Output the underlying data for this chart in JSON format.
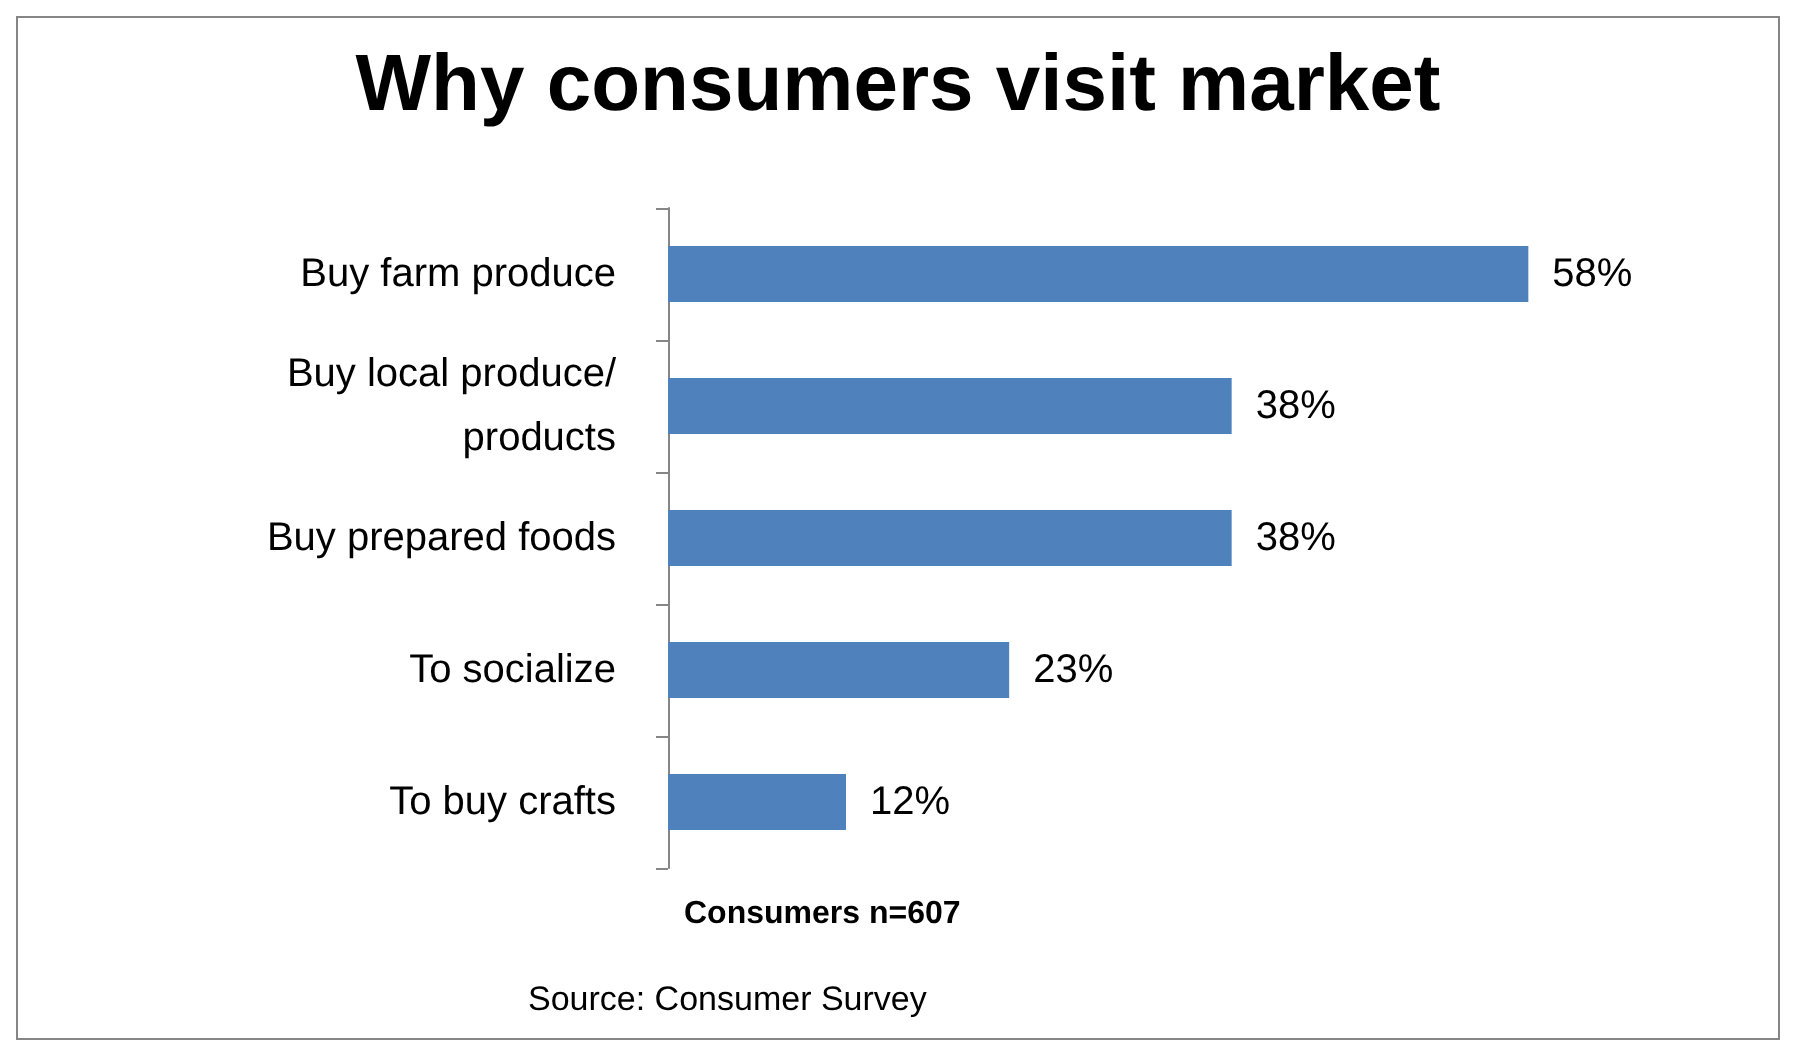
{
  "chart_data": {
    "type": "bar",
    "orientation": "horizontal",
    "title": "Why consumers visit market",
    "xlabel": "Consumers n=607",
    "categories": [
      "Buy farm produce",
      "Buy local produce/products",
      "Buy prepared foods",
      "To socialize",
      "To buy crafts"
    ],
    "values": [
      58,
      38,
      38,
      23,
      12
    ],
    "value_labels": [
      "58%",
      "38%",
      "38%",
      "23%",
      "12%"
    ],
    "color": "#4f81bd",
    "annotations": [
      "Source: Consumer Survey"
    ]
  }
}
